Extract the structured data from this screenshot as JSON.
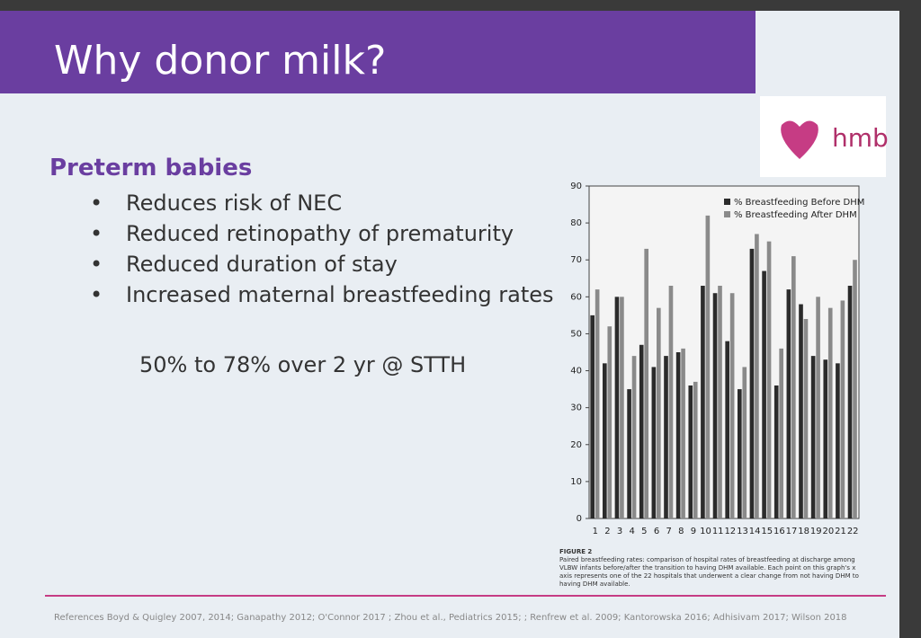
{
  "slide": {
    "title": "Why donor milk?",
    "logo": "hmb",
    "heading": "Preterm babies",
    "bullets": [
      "Reduces risk of NEC",
      "Reduced retinopathy of prematurity",
      "Reduced duration of stay",
      "Increased maternal breastfeeding rates"
    ],
    "bullet_note": "50% to 78% over 2 yr @ STTH",
    "figure_label": "FIGURE 2",
    "figure_caption": "Paired breastfeeding rates: comparison of hospital rates of breastfeeding at discharge among VLBW infants before/after the transition to having DHM available. Each point on this graph's x axis represents one of the 22 hospitals that underwent a clear change from not having DHM to having DHM available.",
    "references": "References Boyd & Quigley 2007, 2014; Ganapathy 2012; O'Connor 2017 ; Zhou et al., Pediatrics 2015; ; Renfrew et al. 2009; Kantorowska 2016; Adhisivam 2017; Wilson 2018"
  },
  "chart_data": {
    "type": "bar",
    "categories": [
      "1",
      "2",
      "3",
      "4",
      "5",
      "6",
      "7",
      "8",
      "9",
      "10",
      "11",
      "12",
      "13",
      "14",
      "15",
      "16",
      "17",
      "18",
      "19",
      "20",
      "21",
      "22"
    ],
    "series": [
      {
        "name": "% Breastfeeding Before DHM",
        "color": "#2b2b2b",
        "values": [
          55,
          42,
          60,
          35,
          47,
          41,
          44,
          45,
          36,
          63,
          61,
          48,
          35,
          73,
          67,
          36,
          62,
          58,
          44,
          43,
          42,
          63
        ]
      },
      {
        "name": "% Breastfeeding After DHM",
        "color": "#8a8a8a",
        "values": [
          62,
          52,
          60,
          44,
          73,
          57,
          63,
          46,
          37,
          82,
          63,
          61,
          41,
          77,
          75,
          46,
          71,
          54,
          60,
          57,
          59,
          70
        ]
      }
    ],
    "ylim": [
      0,
      90
    ],
    "yticks": [
      0,
      10,
      20,
      30,
      40,
      50,
      60,
      70,
      80,
      90
    ],
    "legend": "top-right"
  }
}
